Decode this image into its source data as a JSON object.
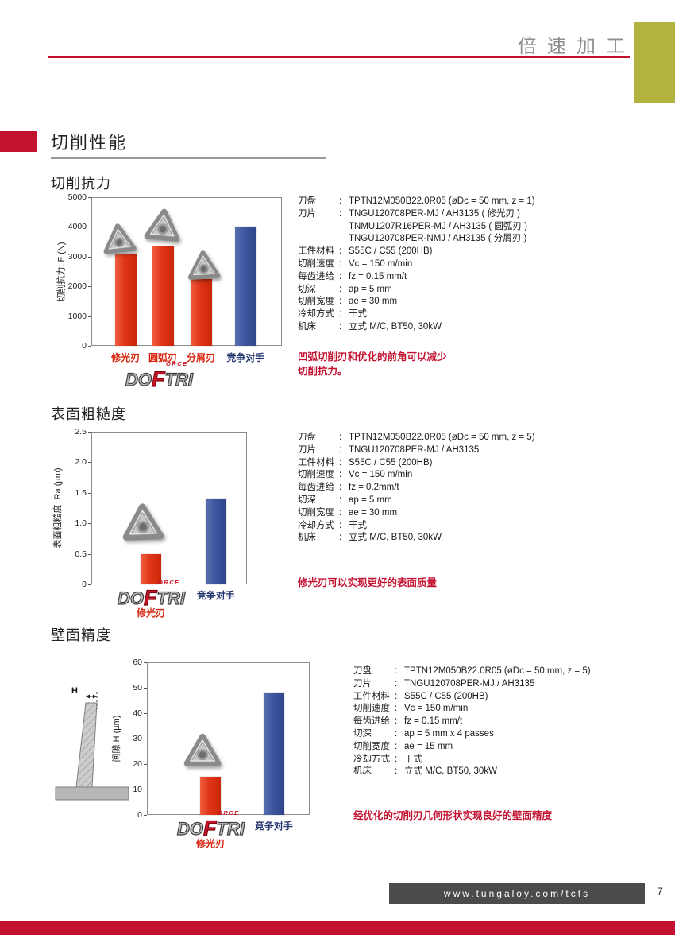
{
  "page": {
    "header_title": "倍速加工",
    "section_title": "切削性能",
    "footer_url": "www.tungaloy.com/tcts",
    "page_number": "7"
  },
  "colors": {
    "accent_red": "#c31230",
    "bar_red": "#e03418",
    "bar_blue": "#3d569e",
    "competitor_label": "#23366e",
    "olive_block": "#b3b33f",
    "footer_band": "#4b4b4b"
  },
  "logo": {
    "left": "DO",
    "accent": "F",
    "right": "TRI",
    "small": "ORCE"
  },
  "diagram": {
    "label": "H"
  },
  "sections": [
    {
      "title": "切削抗力",
      "note": "凹弧切削刃和优化的前角可以减少\n切削抗力。"
    },
    {
      "title": "表面粗糙度",
      "note": "修光刃可以实现更好的表面质量"
    },
    {
      "title": "壁面精度",
      "note": "经优化的切削刃几何形状实现良好的壁面精度"
    }
  ],
  "chart_data": [
    {
      "type": "bar",
      "title": "切削抗力",
      "ylabel": "切削抗力: F (N)",
      "ylim": [
        0,
        5000
      ],
      "yticks": [
        "0",
        "1000",
        "2000",
        "3000",
        "4000",
        "5000"
      ],
      "categories": [
        "修光刃",
        "圆弧刃",
        "分屑刃",
        "竞争对手"
      ],
      "values": [
        3100,
        3350,
        2250,
        4000
      ],
      "bar_colors": [
        "red",
        "red",
        "red",
        "blue"
      ],
      "grid": false,
      "legend": "none"
    },
    {
      "type": "bar",
      "title": "表面粗糙度",
      "ylabel": "表面粗糙度: Ra (µm)",
      "ylim": [
        0,
        2.5
      ],
      "yticks": [
        "0",
        "0.5",
        "1.0",
        "1.5",
        "2.0",
        "2.5"
      ],
      "categories": [
        "修光刃",
        "竞争对手"
      ],
      "values": [
        0.5,
        1.4
      ],
      "bar_colors": [
        "red",
        "blue"
      ],
      "grid": false,
      "legend": "none"
    },
    {
      "type": "bar",
      "title": "壁面精度",
      "ylabel": "间隙 H (µm)",
      "ylim": [
        0,
        60
      ],
      "yticks": [
        "0",
        "10",
        "20",
        "30",
        "40",
        "50",
        "60"
      ],
      "categories": [
        "修光刃",
        "竞争对手"
      ],
      "values": [
        15,
        48
      ],
      "bar_colors": [
        "red",
        "blue"
      ],
      "grid": false,
      "legend": "none"
    }
  ],
  "spec_blocks": [
    {
      "rows": [
        {
          "label": "刀盘",
          "value": "TPTN12M050B22.0R05 (øDc = 50 mm, z = 1)"
        },
        {
          "label": "刀片",
          "value": "TNGU120708PER-MJ / AH3135 ( 修光刃 )"
        },
        {
          "label": "",
          "value": "TNMU1207R16PER-MJ / AH3135 ( 圆弧刃 )"
        },
        {
          "label": "",
          "value": "TNGU120708PER-NMJ / AH3135 ( 分屑刃 )"
        },
        {
          "label": "工件材料",
          "value": "S55C / C55 (200HB)"
        },
        {
          "label": "切削速度",
          "value": "Vc = 150 m/min"
        },
        {
          "label": "每齿进给",
          "value": "fz = 0.15 mm/t"
        },
        {
          "label": "切深",
          "value": "ap = 5 mm"
        },
        {
          "label": "切削宽度",
          "value": "ae = 30 mm"
        },
        {
          "label": "冷却方式",
          "value": "干式"
        },
        {
          "label": "机床",
          "value": "立式 M/C, BT50, 30kW"
        }
      ]
    },
    {
      "rows": [
        {
          "label": "刀盘",
          "value": "TPTN12M050B22.0R05 (øDc = 50 mm, z = 5)"
        },
        {
          "label": "刀片",
          "value": "TNGU120708PER-MJ / AH3135"
        },
        {
          "label": "工件材料",
          "value": "S55C / C55 (200HB)"
        },
        {
          "label": "切削速度",
          "value": "Vc = 150 m/min"
        },
        {
          "label": "每齿进给",
          "value": "fz = 0.2mm/t"
        },
        {
          "label": "切深",
          "value": "ap = 5 mm"
        },
        {
          "label": "切削宽度",
          "value": "ae = 30 mm"
        },
        {
          "label": "冷却方式",
          "value": "干式"
        },
        {
          "label": "机床",
          "value": "立式 M/C, BT50, 30kW"
        }
      ]
    },
    {
      "rows": [
        {
          "label": "刀盘",
          "value": "TPTN12M050B22.0R05 (øDc = 50 mm, z = 5)"
        },
        {
          "label": "刀片",
          "value": "TNGU120708PER-MJ / AH3135"
        },
        {
          "label": "工件材料",
          "value": "S55C / C55 (200HB)"
        },
        {
          "label": "切削速度",
          "value": "Vc = 150 m/min"
        },
        {
          "label": "每齿进给",
          "value": "fz = 0.15 mm/t"
        },
        {
          "label": "切深",
          "value": "ap = 5 mm x 4 passes"
        },
        {
          "label": "切削宽度",
          "value": "ae = 15 mm"
        },
        {
          "label": "冷却方式",
          "value": "干式"
        },
        {
          "label": "机床",
          "value": "立式 M/C, BT50, 30kW"
        }
      ]
    }
  ]
}
